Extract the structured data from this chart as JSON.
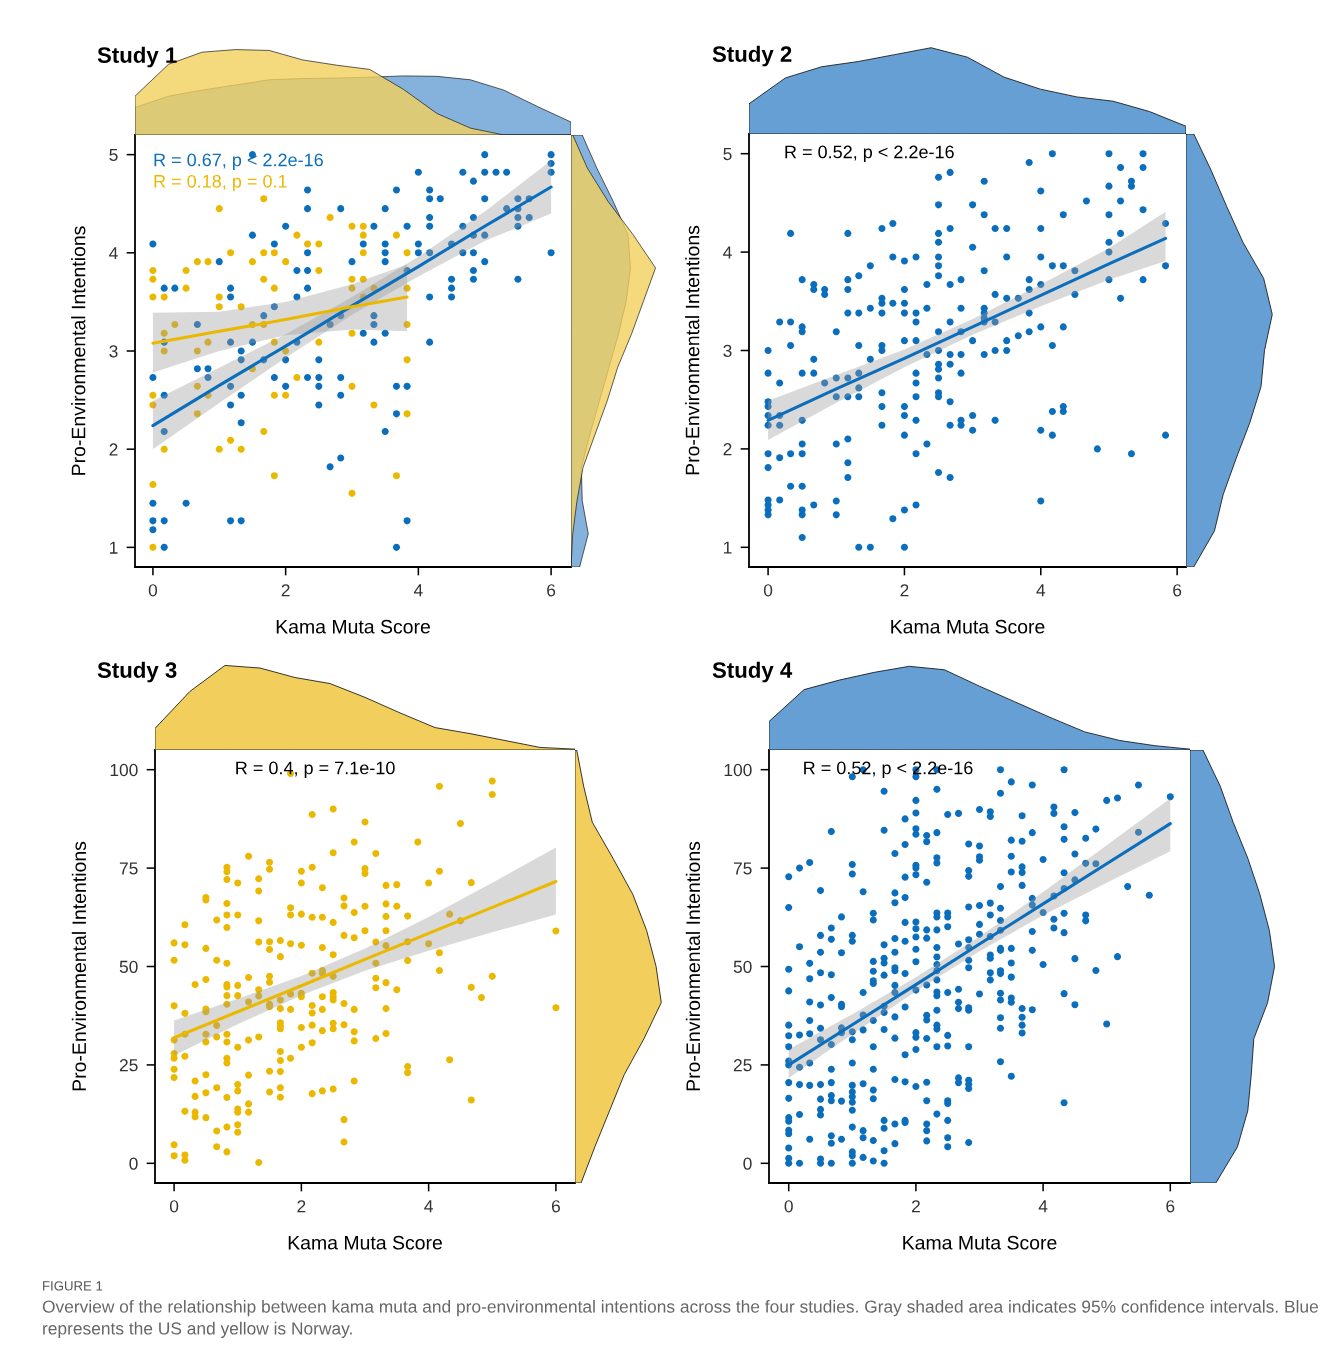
{
  "chart_data": [
    {
      "type": "scatter",
      "title": "Study 1",
      "xlabel": "Kama Muta Score",
      "ylabel": "Pro-Environmental Intentions",
      "xlim": [
        -0.27,
        6.3
      ],
      "ylim": [
        0.8,
        5.2
      ],
      "xticks": [
        0,
        2,
        4,
        6
      ],
      "yticks": [
        1,
        2,
        3,
        4,
        5
      ],
      "marker": "circle",
      "legend": "top left",
      "series": [
        {
          "type": "scatter",
          "color": "#0a6ebd",
          "x": [
            0,
            0,
            0,
            0,
            0,
            0.17,
            0.17,
            0.17,
            0.17,
            0.17,
            0.17,
            0.33,
            0.5,
            0.67,
            0.67,
            0.83,
            0.83,
            1,
            1.17,
            1.17,
            1.17,
            1.17,
            1.17,
            1.17,
            1.33,
            1.33,
            1.33,
            1.33,
            1.33,
            1.5,
            1.5,
            1.5,
            1.67,
            1.67,
            1.83,
            1.83,
            1.83,
            2,
            2,
            2,
            2.17,
            2.17,
            2.17,
            2.33,
            2.33,
            2.33,
            2.33,
            2.33,
            2.33,
            2.5,
            2.5,
            2.5,
            2.5,
            2.67,
            2.67,
            2.83,
            2.83,
            2.83,
            2.83,
            2.83,
            3,
            3.17,
            3.17,
            3.33,
            3.33,
            3.33,
            3.33,
            3.5,
            3.5,
            3.5,
            3.5,
            3.5,
            3.5,
            3.67,
            3.67,
            3.67,
            3.67,
            3.83,
            3.83,
            3.83,
            3.83,
            4,
            4,
            4,
            4.17,
            4.17,
            4.17,
            4.17,
            4.17,
            4.17,
            4.17,
            4.33,
            4.5,
            4.5,
            4.5,
            4.5,
            4.67,
            4.67,
            4.67,
            4.83,
            4.83,
            4.83,
            4.83,
            4.83,
            4.83,
            5,
            5,
            5,
            5,
            5,
            5.17,
            5.33,
            5.33,
            5.5,
            5.5,
            5.5,
            5.5,
            5.5,
            5.67,
            5.67,
            6,
            6,
            6,
            6
          ],
          "values": [
            4.09,
            2.73,
            1.45,
            1.27,
            1.18,
            1.0,
            1.27,
            2.55,
            2.18,
            3.09,
            3.64,
            3.64,
            1.45,
            3.27,
            2.82,
            2.82,
            2.73,
            3.91,
            3.64,
            3.55,
            3.09,
            2.64,
            2.45,
            1.27,
            1.27,
            2.27,
            2.55,
            3.0,
            2.91,
            5.0,
            4.18,
            3.09,
            3.36,
            2.91,
            4.09,
            3.45,
            2.73,
            4.27,
            2.91,
            2.64,
            3.82,
            3.55,
            3.09,
            4.64,
            4.45,
            4.0,
            3.82,
            3.64,
            2.73,
            2.91,
            2.73,
            2.64,
            2.45,
            1.82,
            3.27,
            4.45,
            3.36,
            2.73,
            2.55,
            1.91,
            3.91,
            4.09,
            3.18,
            4.27,
            3.36,
            3.27,
            3.09,
            4.45,
            4.09,
            4.0,
            3.91,
            3.18,
            2.18,
            4.64,
            2.64,
            2.36,
            1.0,
            4.27,
            3.82,
            2.64,
            1.27,
            4.82,
            4.09,
            4.0,
            4.64,
            4.55,
            4.36,
            4.27,
            4.0,
            3.55,
            3.09,
            4.55,
            4.09,
            3.73,
            3.64,
            3.55,
            4.82,
            4.27,
            4.0,
            4.73,
            4.36,
            4.18,
            4.0,
            3.82,
            3.73,
            5.0,
            4.82,
            4.55,
            4.18,
            3.91,
            4.82,
            4.82,
            4.45,
            4.55,
            4.45,
            4.36,
            4.27,
            3.73,
            4.55,
            4.36,
            5.0,
            4.91,
            4.82,
            4.0
          ]
        },
        {
          "type": "scatter",
          "color": "#ebb800",
          "x": [
            0,
            0,
            0,
            0,
            0,
            0,
            0,
            0.17,
            0.17,
            0.17,
            0.17,
            0.33,
            0.5,
            0.5,
            0.67,
            0.67,
            0.67,
            0.67,
            0.83,
            0.83,
            0.83,
            1,
            1,
            1,
            1,
            1.17,
            1.17,
            1.33,
            1.33,
            1.5,
            1.5,
            1.5,
            1.67,
            1.67,
            1.67,
            1.67,
            1.67,
            1.83,
            1.83,
            1.83,
            1.83,
            1.83,
            2,
            2,
            2,
            2.17,
            2.17,
            2.33,
            2.5,
            2.5,
            2.5,
            2.67,
            3,
            3,
            3,
            3,
            3,
            3,
            3.17,
            3.17,
            3.17,
            3.17,
            3.17,
            3.33,
            3.33,
            3.67,
            3.67,
            3.83,
            3.83,
            3.83,
            3.83,
            3.83
          ],
          "values": [
            3.82,
            3.73,
            3.55,
            2.55,
            2.45,
            1.64,
            1.0,
            3.55,
            3.18,
            3.0,
            2.0,
            3.27,
            3.82,
            3.64,
            3.91,
            3.0,
            2.64,
            2.36,
            3.91,
            3.09,
            2.55,
            4.45,
            3.55,
            3.45,
            2.0,
            4.0,
            2.09,
            3.45,
            2.0,
            3.91,
            3.27,
            2.82,
            4.55,
            4.0,
            3.73,
            3.27,
            2.18,
            4.0,
            3.64,
            3.09,
            2.55,
            1.73,
            3.91,
            3.0,
            2.55,
            4.18,
            2.73,
            4.09,
            4.09,
            3.82,
            3.09,
            4.36,
            4.27,
            3.73,
            3.64,
            3.18,
            2.64,
            1.55,
            4.27,
            4.18,
            4.0,
            3.73,
            3.55,
            3.64,
            2.45,
            4.18,
            1.73,
            4.0,
            3.64,
            3.27,
            2.91,
            2.36
          ]
        },
        {
          "type": "line",
          "marker": "none",
          "name": "R = 0.67, p < 2.2e-16",
          "color": "#0a6ebd",
          "x": [
            0,
            1,
            2,
            3,
            4,
            5,
            6
          ],
          "values": [
            2.24,
            2.65,
            3.05,
            3.46,
            3.86,
            4.27,
            4.67
          ],
          "lower": [
            2.0,
            2.47,
            2.93,
            3.37,
            3.76,
            4.12,
            4.4
          ],
          "upper": [
            2.49,
            2.83,
            3.17,
            3.55,
            3.96,
            4.42,
            4.94
          ]
        },
        {
          "type": "line",
          "marker": "none",
          "name": "R = 0.18, p = 0.1",
          "color": "#ebb800",
          "x": [
            0,
            1,
            2,
            3,
            3.83
          ],
          "values": [
            3.08,
            3.2,
            3.32,
            3.45,
            3.55
          ],
          "lower": [
            2.78,
            3.0,
            3.16,
            3.22,
            3.2
          ],
          "upper": [
            3.39,
            3.4,
            3.5,
            3.68,
            3.88
          ]
        }
      ]
    },
    {
      "type": "scatter",
      "title": "Study 2",
      "xlabel": "Kama Muta Score",
      "ylabel": "Pro-Environmental Intentions",
      "xlim": [
        -0.28,
        6.13
      ],
      "ylim": [
        0.8,
        5.2
      ],
      "xticks": [
        0,
        2,
        4,
        6
      ],
      "yticks": [
        1,
        2,
        3,
        4,
        5
      ],
      "marker": "circle",
      "annotations": [
        "R = 0.52, p < 2.2e-16"
      ],
      "series": [
        {
          "type": "scatter",
          "color": "#0a6ebd",
          "x": [
            0,
            0,
            0,
            0,
            0,
            0,
            0,
            0,
            0,
            0,
            0,
            0,
            0.17,
            0.17,
            0.17,
            0.17,
            0.17,
            0.17,
            0.33,
            0.33,
            0.33,
            0.33,
            0.33,
            0.5,
            0.5,
            0.5,
            0.5,
            0.5,
            0.5,
            0.5,
            0.5,
            0.5,
            0.5,
            0.5,
            0.67,
            0.67,
            0.67,
            0.67,
            0.67,
            0.83,
            0.83,
            0.83,
            1,
            1,
            1,
            1,
            1,
            1,
            1.17,
            1.17,
            1.17,
            1.17,
            1.17,
            1.17,
            1.17,
            1.17,
            1.17,
            1.33,
            1.33,
            1.33,
            1.33,
            1.33,
            1.33,
            1.33,
            1.5,
            1.5,
            1.5,
            1.5,
            1.67,
            1.67,
            1.67,
            1.67,
            1.67,
            1.67,
            1.67,
            1.67,
            1.67,
            1.83,
            1.83,
            1.83,
            1.83,
            2,
            2,
            2,
            2,
            2,
            2,
            2,
            2,
            2,
            2,
            2.17,
            2.17,
            2.17,
            2.17,
            2.17,
            2.17,
            2.17,
            2.17,
            2.17,
            2.17,
            2.33,
            2.33,
            2.33,
            2.33,
            2.5,
            2.5,
            2.5,
            2.5,
            2.5,
            2.5,
            2.5,
            2.5,
            2.5,
            2.5,
            2.5,
            2.5,
            2.5,
            2.5,
            2.5,
            2.67,
            2.67,
            2.67,
            2.67,
            2.67,
            2.67,
            2.67,
            2.67,
            2.67,
            2.83,
            2.83,
            2.83,
            2.83,
            2.83,
            2.83,
            2.83,
            3,
            3,
            3,
            3,
            3,
            3.17,
            3.17,
            3.17,
            3.17,
            3.17,
            3.17,
            3.17,
            3.17,
            3.33,
            3.33,
            3.33,
            3.33,
            3.33,
            3.5,
            3.5,
            3.5,
            3.5,
            3.5,
            3.67,
            3.67,
            3.83,
            3.83,
            3.83,
            3.83,
            3.83,
            4,
            4,
            4,
            4,
            4,
            4,
            4,
            4.17,
            4.17,
            4.17,
            4.17,
            4.17,
            4.33,
            4.33,
            4.33,
            4.33,
            4.33,
            4.5,
            4.5,
            4.67,
            4.83,
            5,
            5,
            5,
            5,
            5,
            5,
            5.17,
            5.17,
            5.17,
            5.17,
            5.33,
            5.33,
            5.33,
            5.5,
            5.5,
            5.5,
            5.5,
            5.83,
            5.83,
            5.83
          ],
          "values": [
            3.0,
            2.77,
            2.48,
            2.43,
            2.34,
            2.24,
            1.95,
            1.81,
            1.48,
            1.43,
            1.38,
            1.33,
            3.29,
            2.67,
            2.34,
            2.24,
            1.91,
            1.48,
            4.19,
            3.29,
            3.05,
            1.95,
            1.62,
            3.72,
            3.24,
            3.19,
            2.77,
            2.29,
            2.05,
            1.95,
            1.62,
            1.38,
            1.33,
            1.1,
            3.67,
            3.62,
            2.91,
            2.77,
            1.43,
            3.62,
            3.57,
            2.67,
            3.19,
            2.72,
            2.53,
            2.05,
            1.47,
            1.33,
            4.19,
            3.72,
            3.62,
            3.38,
            2.72,
            2.53,
            2.1,
            1.86,
            1.71,
            3.76,
            3.38,
            3.05,
            2.77,
            2.62,
            2.53,
            1.0,
            3.86,
            3.43,
            2.91,
            1.0,
            4.24,
            3.53,
            3.48,
            3.38,
            3.05,
            3.0,
            2.57,
            2.43,
            2.24,
            4.29,
            3.95,
            3.48,
            1.29,
            3.91,
            3.62,
            3.48,
            3.38,
            3.1,
            2.43,
            2.34,
            2.14,
            1.38,
            1.0,
            3.95,
            3.38,
            3.29,
            3.1,
            2.77,
            2.67,
            2.53,
            2.29,
            1.95,
            1.43,
            3.67,
            3.43,
            2.96,
            2.05,
            4.76,
            4.48,
            4.19,
            4.1,
            3.95,
            3.86,
            3.76,
            3.19,
            3.0,
            2.86,
            2.81,
            2.72,
            2.57,
            2.53,
            1.76,
            4.81,
            4.24,
            3.67,
            3.29,
            2.96,
            2.86,
            2.48,
            2.24,
            1.71,
            3.72,
            3.43,
            3.19,
            2.96,
            2.77,
            2.29,
            2.24,
            4.48,
            4.05,
            3.1,
            2.34,
            2.19,
            4.72,
            4.38,
            3.81,
            3.43,
            3.38,
            3.33,
            3.29,
            2.96,
            4.24,
            3.57,
            3.29,
            3.0,
            2.29,
            4.24,
            3.95,
            3.53,
            3.1,
            3.0,
            3.53,
            3.15,
            4.91,
            3.72,
            3.62,
            3.38,
            3.19,
            4.62,
            4.24,
            3.95,
            3.67,
            3.24,
            2.19,
            1.47,
            5.0,
            3.86,
            3.05,
            2.38,
            2.14,
            4.38,
            3.86,
            3.24,
            2.43,
            2.38,
            3.81,
            3.57,
            4.52,
            2.0,
            5.0,
            4.67,
            4.38,
            4.1,
            4.0,
            3.72,
            4.86,
            4.52,
            4.19,
            3.53,
            4.72,
            4.67,
            1.95,
            5.0,
            4.86,
            4.43,
            3.72,
            4.29,
            3.86,
            2.14
          ]
        },
        {
          "type": "line",
          "marker": "none",
          "color": "#0a6ebd",
          "x": [
            0,
            1,
            2,
            3,
            4,
            5,
            5.83
          ],
          "values": [
            2.29,
            2.61,
            2.92,
            3.24,
            3.56,
            3.88,
            4.14
          ],
          "lower": [
            2.09,
            2.47,
            2.83,
            3.16,
            3.45,
            3.72,
            3.91
          ],
          "upper": [
            2.49,
            2.75,
            3.01,
            3.32,
            3.67,
            4.04,
            4.41
          ]
        }
      ]
    },
    {
      "type": "scatter",
      "title": "Study 3",
      "xlabel": "Kama Muta Score",
      "ylabel": "Pro-Environmental Intentions",
      "xlim": [
        -0.3,
        6.3
      ],
      "ylim": [
        -5,
        105
      ],
      "xticks": [
        0,
        2,
        4,
        6
      ],
      "yticks": [
        0,
        25,
        50,
        75,
        100
      ],
      "marker": "circle",
      "annotations": [
        "R = 0.4, p = 7.1e-10"
      ],
      "series": [
        {
          "type": "scatter",
          "color": "#ebb800",
          "x": [
            0,
            0,
            0,
            0,
            0,
            0,
            0,
            0,
            0,
            0,
            0.17,
            0.17,
            0.17,
            0.17,
            0.17,
            0.17,
            0.17,
            0.17,
            0.33,
            0.33,
            0.33,
            0.33,
            0.33,
            0.5,
            0.5,
            0.5,
            0.5,
            0.5,
            0.5,
            0.5,
            0.5,
            0.5,
            0.5,
            0.5,
            0.67,
            0.67,
            0.67,
            0.67,
            0.67,
            0.67,
            0.67,
            0.83,
            0.83,
            0.83,
            0.83,
            0.83,
            0.83,
            0.83,
            0.83,
            0.83,
            0.83,
            0.83,
            0.83,
            0.83,
            0.83,
            0.83,
            0.83,
            0.83,
            0.83,
            1,
            1,
            1,
            1,
            1,
            1,
            1,
            1,
            1,
            1,
            1,
            1.17,
            1.17,
            1.17,
            1.17,
            1.17,
            1.17,
            1.17,
            1.33,
            1.33,
            1.33,
            1.33,
            1.33,
            1.33,
            1.33,
            1.33,
            1.5,
            1.5,
            1.5,
            1.5,
            1.5,
            1.5,
            1.5,
            1.5,
            1.5,
            1.5,
            1.67,
            1.67,
            1.67,
            1.67,
            1.67,
            1.67,
            1.67,
            1.67,
            1.67,
            1.67,
            1.67,
            1.67,
            1.83,
            1.83,
            1.83,
            1.83,
            1.83,
            1.83,
            1.83,
            2,
            2,
            2,
            2,
            2,
            2,
            2,
            2,
            2.17,
            2.17,
            2.17,
            2.17,
            2.17,
            2.17,
            2.17,
            2.17,
            2.17,
            2.33,
            2.33,
            2.33,
            2.33,
            2.33,
            2.33,
            2.33,
            2.33,
            2.33,
            2.5,
            2.5,
            2.5,
            2.5,
            2.5,
            2.5,
            2.5,
            2.5,
            2.5,
            2.5,
            2.5,
            2.67,
            2.67,
            2.67,
            2.67,
            2.67,
            2.67,
            2.67,
            2.83,
            2.83,
            2.83,
            2.83,
            2.83,
            2.83,
            2.83,
            3,
            3,
            3,
            3,
            3,
            3.17,
            3.17,
            3.17,
            3.17,
            3.17,
            3.17,
            3.33,
            3.33,
            3.33,
            3.33,
            3.33,
            3.33,
            3.33,
            3.33,
            3.5,
            3.5,
            3.5,
            3.67,
            3.67,
            3.67,
            3.67,
            3.67,
            3.83,
            4,
            4,
            4.17,
            4.17,
            4.17,
            4.17,
            4.33,
            4.33,
            4.5,
            4.5,
            4.67,
            4.67,
            4.67,
            4.83,
            5,
            5,
            5,
            6,
            6
          ],
          "values": [
            56,
            51.6,
            40,
            31.3,
            27.9,
            26.7,
            23.9,
            21.8,
            4.7,
            1.9,
            60.6,
            55.5,
            38.1,
            32.8,
            27.2,
            13.2,
            2.1,
            0.8,
            45.4,
            20.9,
            17,
            13,
            11.8,
            67.5,
            66.9,
            54.6,
            46.7,
            39.2,
            38.5,
            32.8,
            30.8,
            22.5,
            17.9,
            11.6,
            61.8,
            51.6,
            35,
            32.1,
            19.2,
            8.2,
            4.2,
            75.2,
            74.1,
            72.1,
            66,
            63.1,
            59.9,
            50.8,
            45.4,
            44.8,
            42.6,
            40.4,
            32.8,
            30.8,
            26.7,
            25.5,
            16.7,
            9.2,
            2.9,
            71.2,
            63.1,
            45.2,
            42.6,
            29.5,
            20,
            18.4,
            13.8,
            13,
            9.8,
            7.9,
            78,
            47.2,
            41,
            31.3,
            22.4,
            15.1,
            13,
            72.3,
            69.2,
            61.6,
            56.2,
            44.1,
            42.5,
            32.1,
            0.2,
            76.5,
            74.7,
            56.3,
            54.3,
            47.5,
            46,
            40.4,
            39.8,
            23.4,
            18.1,
            56.6,
            52.5,
            41.5,
            39.3,
            35.7,
            34.9,
            34.2,
            28.4,
            26.1,
            23.3,
            19.2,
            16.8,
            99,
            64.9,
            63.1,
            55.8,
            43,
            39.1,
            26.7,
            74.2,
            71.2,
            63.3,
            55.4,
            43.2,
            42.3,
            34.5,
            29.5,
            88.6,
            75.2,
            62.5,
            48.3,
            40.1,
            38.2,
            35.1,
            30.6,
            17.7,
            70,
            62.5,
            54.8,
            49,
            48.3,
            42.3,
            39.1,
            33.7,
            18.4,
            90,
            78.9,
            61.2,
            53,
            47.5,
            43.4,
            42.3,
            41.5,
            35.6,
            34.2,
            18.9,
            67.4,
            65.4,
            57.9,
            40.6,
            35.2,
            11.1,
            5.4,
            81.6,
            63.7,
            57.3,
            39.1,
            33.4,
            31.1,
            20.9,
            86.7,
            74.9,
            73.6,
            65.3,
            59.1,
            78.7,
            56.2,
            50.8,
            47,
            44.6,
            31.7,
            70.6,
            65.9,
            62.7,
            59.1,
            55.3,
            45.9,
            39.3,
            33,
            70.8,
            65.3,
            44.1,
            62.8,
            56.3,
            51.5,
            24.6,
            23,
            81.6,
            71.2,
            55.8,
            95.8,
            74.2,
            53.5,
            49,
            63.3,
            26.3,
            86.3,
            61.6,
            71.3,
            44.7,
            16.1,
            42.1,
            97.1,
            93.7,
            47.5,
            59,
            39.5
          ]
        },
        {
          "type": "line",
          "marker": "none",
          "color": "#ebb800",
          "x": [
            0,
            1,
            2,
            3,
            4,
            5,
            6
          ],
          "values": [
            31.9,
            38.5,
            45.1,
            51.8,
            58.4,
            65.0,
            71.6
          ],
          "lower": [
            27.4,
            35.3,
            42.7,
            48.9,
            54.0,
            58.7,
            63.2
          ],
          "upper": [
            36.3,
            41.8,
            47.6,
            54.6,
            62.6,
            71.3,
            80.2
          ]
        }
      ]
    },
    {
      "type": "scatter",
      "title": "Study 4",
      "xlabel": "Kama Muta Score",
      "ylabel": "Pro-Environmental Intentions",
      "xlim": [
        -0.31,
        6.31
      ],
      "ylim": [
        -5,
        105
      ],
      "xticks": [
        0,
        2,
        4,
        6
      ],
      "yticks": [
        0,
        25,
        50,
        75,
        100
      ],
      "marker": "circle",
      "annotations": [
        "R = 0.52, p < 2.2e-16"
      ],
      "series": [
        {
          "type": "scatter",
          "color": "#0a6ebd",
          "x": [
            0,
            0,
            0,
            0,
            0,
            0,
            0,
            0,
            0,
            0,
            0,
            0,
            0,
            0,
            0,
            0,
            0,
            0,
            0.17,
            0.17,
            0.17,
            0.17,
            0.17,
            0.17,
            0.17,
            0.33,
            0.33,
            0.33,
            0.33,
            0.33,
            0.33,
            0.33,
            0.33,
            0.33,
            0.5,
            0.5,
            0.5,
            0.5,
            0.5,
            0.5,
            0.5,
            0.5,
            0.5,
            0.5,
            0.5,
            0.5,
            0.5,
            0.67,
            0.67,
            0.67,
            0.67,
            0.67,
            0.67,
            0.67,
            0.67,
            0.67,
            0.67,
            0.67,
            0.67,
            0.67,
            0.83,
            0.83,
            0.83,
            0.83,
            0.83,
            0.83,
            0.83,
            0.83,
            1,
            1,
            1,
            1,
            1,
            1,
            1,
            1,
            1,
            1,
            1,
            1,
            1,
            1,
            1,
            1,
            1,
            1.17,
            1.17,
            1.17,
            1.17,
            1.17,
            1.17,
            1.17,
            1.17,
            1.17,
            1.33,
            1.33,
            1.33,
            1.33,
            1.33,
            1.33,
            1.33,
            1.33,
            1.33,
            1.33,
            1.33,
            1.33,
            1.33,
            1.5,
            1.5,
            1.5,
            1.5,
            1.5,
            1.5,
            1.5,
            1.5,
            1.5,
            1.5,
            1.5,
            1.5,
            1.5,
            1.67,
            1.67,
            1.67,
            1.67,
            1.67,
            1.67,
            1.67,
            1.67,
            1.67,
            1.67,
            1.67,
            1.67,
            1.67,
            1.67,
            1.83,
            1.83,
            1.83,
            1.83,
            1.83,
            1.83,
            1.83,
            1.83,
            1.83,
            1.83,
            1.83,
            1.83,
            2,
            2,
            2,
            2,
            2,
            2,
            2,
            2,
            2,
            2,
            2,
            2,
            2,
            2,
            2,
            2,
            2,
            2,
            2,
            2.17,
            2.17,
            2.17,
            2.17,
            2.17,
            2.17,
            2.17,
            2.17,
            2.17,
            2.17,
            2.17,
            2.17,
            2.17,
            2.17,
            2.33,
            2.33,
            2.33,
            2.33,
            2.33,
            2.33,
            2.33,
            2.33,
            2.33,
            2.33,
            2.33,
            2.33,
            2.33,
            2.33,
            2.33,
            2.33,
            2.33,
            2.33,
            2.33,
            2.33,
            2.5,
            2.5,
            2.5,
            2.5,
            2.5,
            2.5,
            2.5,
            2.5,
            2.5,
            2.5,
            2.5,
            2.5,
            2.67,
            2.67,
            2.67,
            2.67,
            2.67,
            2.67,
            2.67,
            2.83,
            2.83,
            2.83,
            2.83,
            2.83,
            2.83,
            2.83,
            2.83,
            2.83,
            2.83,
            2.83,
            2.83,
            2.83,
            2.83,
            2.83,
            3,
            3,
            3,
            3,
            3,
            3,
            3,
            3,
            3.17,
            3.17,
            3.17,
            3.17,
            3.17,
            3.17,
            3.17,
            3.17,
            3.17,
            3.33,
            3.33,
            3.33,
            3.33,
            3.33,
            3.33,
            3.33,
            3.33,
            3.33,
            3.33,
            3.33,
            3.33,
            3.33,
            3.33,
            3.33,
            3.5,
            3.5,
            3.5,
            3.5,
            3.5,
            3.5,
            3.5,
            3.5,
            3.5,
            3.5,
            3.67,
            3.67,
            3.67,
            3.67,
            3.67,
            3.67,
            3.67,
            3.67,
            3.67,
            3.83,
            3.83,
            3.83,
            3.83,
            3.83,
            3.83,
            3.83,
            4,
            4,
            4,
            4.17,
            4.17,
            4.17,
            4.17,
            4.17,
            4.33,
            4.33,
            4.33,
            4.33,
            4.33,
            4.33,
            4.33,
            4.33,
            4.33,
            4.5,
            4.5,
            4.5,
            4.5,
            4.5,
            4.67,
            4.67,
            4.67,
            4.67,
            4.83,
            4.83,
            4.83,
            5,
            5,
            5.17,
            5.17,
            5.33,
            5.5,
            5.5,
            5.67,
            6
          ],
          "values": [
            72.8,
            65,
            49.3,
            43.8,
            35.1,
            32.4,
            29.6,
            26,
            25,
            20.5,
            16.5,
            11.6,
            10.7,
            8.4,
            7.5,
            3.9,
            1.3,
            0,
            75,
            55,
            32.6,
            24.4,
            20,
            12.4,
            0,
            76.4,
            50.8,
            46.9,
            41,
            36.3,
            32.9,
            25.5,
            19.8,
            6.1,
            69.3,
            57.9,
            53.6,
            48.4,
            40.2,
            34.3,
            31.4,
            20,
            16.3,
            13.7,
            12.3,
            1.1,
            0,
            84.3,
            59.8,
            56.9,
            47.9,
            42.1,
            30.2,
            23.9,
            20.5,
            17.2,
            15.9,
            7,
            5.1,
            0,
            62.6,
            53.5,
            40.4,
            39.8,
            34.4,
            33.2,
            15.8,
            6.1,
            98.2,
            75.9,
            73.5,
            57.9,
            56.4,
            33.4,
            31.4,
            25.5,
            19.8,
            18.1,
            16.9,
            15.5,
            13.5,
            9.2,
            2.9,
            1.9,
            0,
            100,
            69,
            43.4,
            37.7,
            33.9,
            20.2,
            8.3,
            6.5,
            1.5,
            63.5,
            61.8,
            51.3,
            48.8,
            46.4,
            45.7,
            36.3,
            29.6,
            23.9,
            18.6,
            16.4,
            5.8,
            0.6,
            94.5,
            84.6,
            55.5,
            52.1,
            50.9,
            47.8,
            39.9,
            38.3,
            34,
            10.9,
            8.9,
            3.2,
            0,
            78.7,
            68.7,
            66.2,
            57.1,
            53.6,
            49.7,
            48.9,
            45.2,
            43.4,
            37.2,
            31.8,
            21.3,
            10,
            5,
            87.5,
            81,
            72.7,
            67.5,
            61.2,
            56.4,
            48.2,
            39.7,
            27.6,
            20.7,
            10.9,
            10.4,
            100,
            98.2,
            92.2,
            89,
            85,
            83.6,
            75.7,
            75,
            73.3,
            61.3,
            59.6,
            57.5,
            54.4,
            51.2,
            44,
            33.2,
            32,
            28.9,
            19.5,
            83.3,
            81.7,
            71.4,
            59.3,
            57.2,
            45.3,
            37.6,
            36.4,
            31.7,
            20.6,
            15.9,
            10,
            8.3,
            5.7,
            100,
            95,
            84,
            77.6,
            76.3,
            63.6,
            62.6,
            59.3,
            54.8,
            52.4,
            50.5,
            48.9,
            46.6,
            43.5,
            42.6,
            38.9,
            35.1,
            34.1,
            29.6,
            12.5,
            88.6,
            63.6,
            62.6,
            60.1,
            43.4,
            32.5,
            29.8,
            15.9,
            15.2,
            10.9,
            6.5,
            4.2,
            88.9,
            55.7,
            44.2,
            40.9,
            39.3,
            21.7,
            20.5,
            81.1,
            74.4,
            72.9,
            65.1,
            56.8,
            54.8,
            51.6,
            49.7,
            39.5,
            38.9,
            29.6,
            21.1,
            20.1,
            19,
            5.3,
            89.9,
            80.6,
            77.9,
            77,
            65.5,
            60.7,
            58.2,
            43,
            89.3,
            88.1,
            66.1,
            63.1,
            57.6,
            52.9,
            52.1,
            48.4,
            46.6,
            100,
            94,
            70.3,
            64.8,
            61.7,
            59.2,
            54.6,
            54.1,
            48.9,
            48.2,
            43.2,
            41.5,
            37,
            34.3,
            25.8,
            96.9,
            82.1,
            78,
            74,
            54.6,
            50.9,
            47.3,
            42,
            40.9,
            22.1,
            88.3,
            81.8,
            75.3,
            73.9,
            70.6,
            39.3,
            37.1,
            35.1,
            33.1,
            96.1,
            84,
            67.3,
            65.6,
            58.9,
            54.1,
            39,
            77.2,
            63.7,
            50.5,
            90.5,
            88.9,
            67.9,
            62,
            59.8,
            100,
            85.5,
            82.3,
            73.8,
            69.8,
            63.5,
            58.6,
            43.1,
            15.4,
            89.1,
            78.6,
            72,
            52,
            40.3,
            82.6,
            76.2,
            63.1,
            61.6,
            84.9,
            76.1,
            49,
            92.2,
            35.4,
            92.8,
            52.5,
            70.3,
            96.1,
            84.1,
            68.1,
            93.1
          ]
        },
        {
          "type": "line",
          "marker": "none",
          "color": "#0a6ebd",
          "x": [
            0,
            1,
            2,
            3,
            4,
            5,
            6
          ],
          "values": [
            25.0,
            35.2,
            45.4,
            55.7,
            65.9,
            76.1,
            86.3
          ],
          "lower": [
            21.7,
            32.8,
            43.7,
            53.9,
            63.0,
            71.3,
            79.3
          ],
          "upper": [
            28.9,
            37.9,
            47.3,
            57.6,
            68.9,
            80.8,
            92.7
          ]
        }
      ]
    },
    {
      "type": "other",
      "title": "FIGURE 1",
      "annotations": [
        "Overview of the relationship between kama muta and pro-environmental intentions across the four studies. Gray shaded area indicates 95% confidence intervals. Blue represents the US and yellow is Norway."
      ]
    }
  ]
}
